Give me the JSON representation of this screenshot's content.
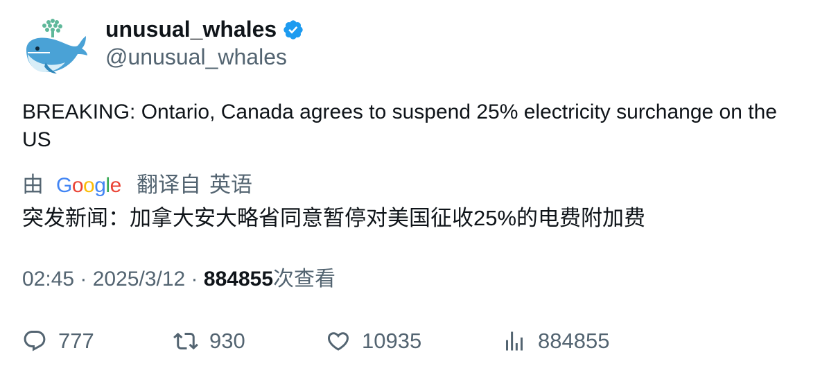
{
  "user": {
    "display_name": "unusual_whales",
    "handle": "@unusual_whales",
    "verified_color": "#1d9bf0"
  },
  "tweet": {
    "text": "BREAKING: Ontario, Canada agrees to suspend 25% electricity surchange on the US"
  },
  "translation": {
    "by": "由",
    "provider": "Google",
    "translated_from": "翻译自",
    "language": "英语",
    "text": "突发新闻：加拿大安大略省同意暂停对美国征收25%的电费附加费"
  },
  "meta": {
    "time": "02:45",
    "separator": " · ",
    "date": "2025/3/12",
    "views": "884855",
    "views_suffix": "次查看"
  },
  "actions": {
    "replies": {
      "icon": "reply-icon",
      "count": "777"
    },
    "retweets": {
      "icon": "retweet-icon",
      "count": "930"
    },
    "likes": {
      "icon": "heart-icon",
      "count": "10935"
    },
    "views": {
      "icon": "analytics-icon",
      "count": "884855"
    }
  },
  "colors": {
    "text_primary": "#0f1419",
    "text_secondary": "#536471"
  }
}
